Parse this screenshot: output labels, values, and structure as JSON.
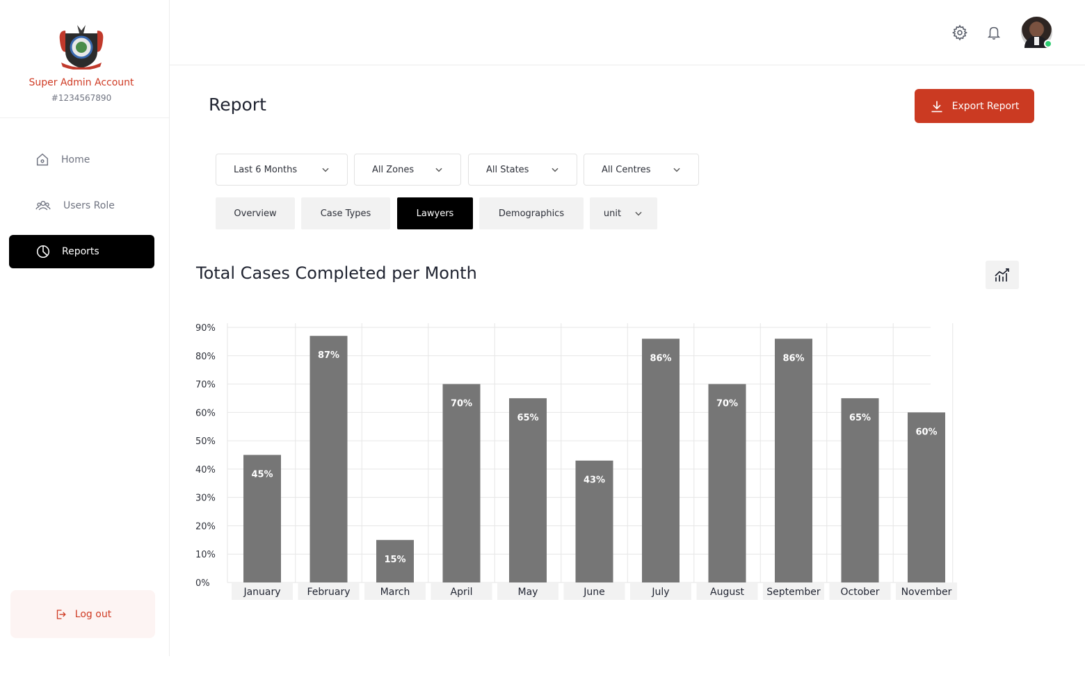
{
  "sidebar": {
    "account_name": "Super Admin Account",
    "account_id": "#1234567890",
    "items": [
      {
        "label": "Home",
        "icon": "home-icon"
      },
      {
        "label": "Users Role",
        "icon": "users-icon"
      },
      {
        "label": "Reports",
        "icon": "pie-chart-icon",
        "active": true
      }
    ],
    "logout_label": "Log out"
  },
  "topbar": {
    "icons": [
      "gear-icon",
      "bell-icon"
    ],
    "avatar_status": "online"
  },
  "main": {
    "title": "Report",
    "export_label": "Export Report",
    "filters": [
      {
        "label": "Last 6 Months"
      },
      {
        "label": "All Zones"
      },
      {
        "label": "All States"
      },
      {
        "label": "All Centres"
      }
    ],
    "tabs": [
      {
        "label": "Overview"
      },
      {
        "label": "Case Types"
      },
      {
        "label": "Lawyers",
        "active": true
      },
      {
        "label": "Demographics"
      },
      {
        "label": "unit",
        "dropdown": true
      }
    ],
    "chart_toggle_icon": "line-chart-icon"
  },
  "colors": {
    "accent": "#cb3a22",
    "bar": "#767676",
    "active_nav": "#000000"
  },
  "chart_data": {
    "type": "bar",
    "title": "Total Cases Completed per Month",
    "categories": [
      "January",
      "February",
      "March",
      "April",
      "May",
      "June",
      "July",
      "August",
      "September",
      "October",
      "November"
    ],
    "values": [
      45,
      87,
      15,
      70,
      65,
      43,
      86,
      70,
      86,
      65,
      60
    ],
    "value_labels": [
      "45%",
      "87%",
      "15%",
      "70%",
      "65%",
      "43%",
      "86%",
      "70%",
      "86%",
      "65%",
      "60%"
    ],
    "ylim": [
      0,
      90
    ],
    "yticks": [
      "0%",
      "10%",
      "20%",
      "30%",
      "40%",
      "50%",
      "60%",
      "70%",
      "80%",
      "90%"
    ],
    "grid": true,
    "xlabel": "",
    "ylabel": ""
  }
}
